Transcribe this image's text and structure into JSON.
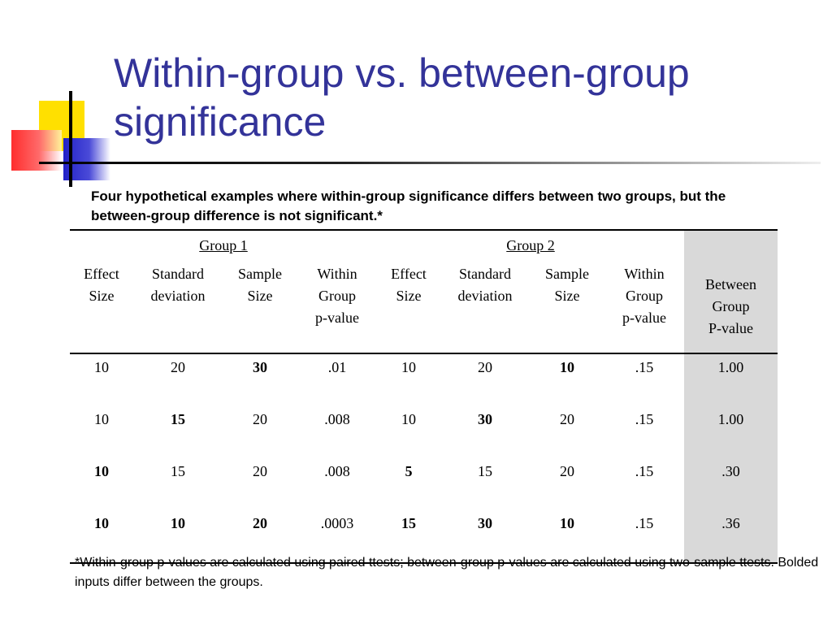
{
  "title": "Within-group vs. between-group significance",
  "subtitle": "Four hypothetical examples where within-group significance differs between two groups, but the between-group difference is not significant.*",
  "table": {
    "group1_label": "Group 1",
    "group2_label": "Group 2",
    "columns": [
      [
        "Effect",
        "Size"
      ],
      [
        "Standard",
        "deviation"
      ],
      [
        "Sample",
        "Size"
      ],
      [
        "Within",
        "Group",
        "p-value"
      ],
      [
        "Effect",
        "Size"
      ],
      [
        "Standard",
        "deviation"
      ],
      [
        "Sample",
        "Size"
      ],
      [
        "Within",
        "Group",
        "p-value"
      ],
      [
        "Between",
        "Group",
        "P-value"
      ]
    ],
    "rows": [
      [
        "10",
        "20",
        "30",
        ".01",
        "10",
        "20",
        "10",
        ".15",
        "1.00"
      ],
      [
        "10",
        "15",
        "20",
        ".008",
        "10",
        "30",
        "20",
        ".15",
        "1.00"
      ],
      [
        "10",
        "15",
        "20",
        ".008",
        "5",
        "15",
        "20",
        ".15",
        ".30"
      ],
      [
        "10",
        "10",
        "20",
        ".0003",
        "15",
        "30",
        "10",
        ".15",
        ".36"
      ]
    ],
    "bold_cells": [
      [
        0,
        2
      ],
      [
        0,
        6
      ],
      [
        1,
        1
      ],
      [
        1,
        5
      ],
      [
        2,
        0
      ],
      [
        2,
        4
      ],
      [
        3,
        0
      ],
      [
        3,
        1
      ],
      [
        3,
        2
      ],
      [
        3,
        4
      ],
      [
        3,
        5
      ],
      [
        3,
        6
      ]
    ]
  },
  "footnote": "*Within-group p-values are calculated using paired ttests; between-group p-values are calculated using two-sample ttests. Bolded inputs differ between the groups.",
  "colors": {
    "title": "#333399",
    "shade": "#d9d9d9"
  }
}
